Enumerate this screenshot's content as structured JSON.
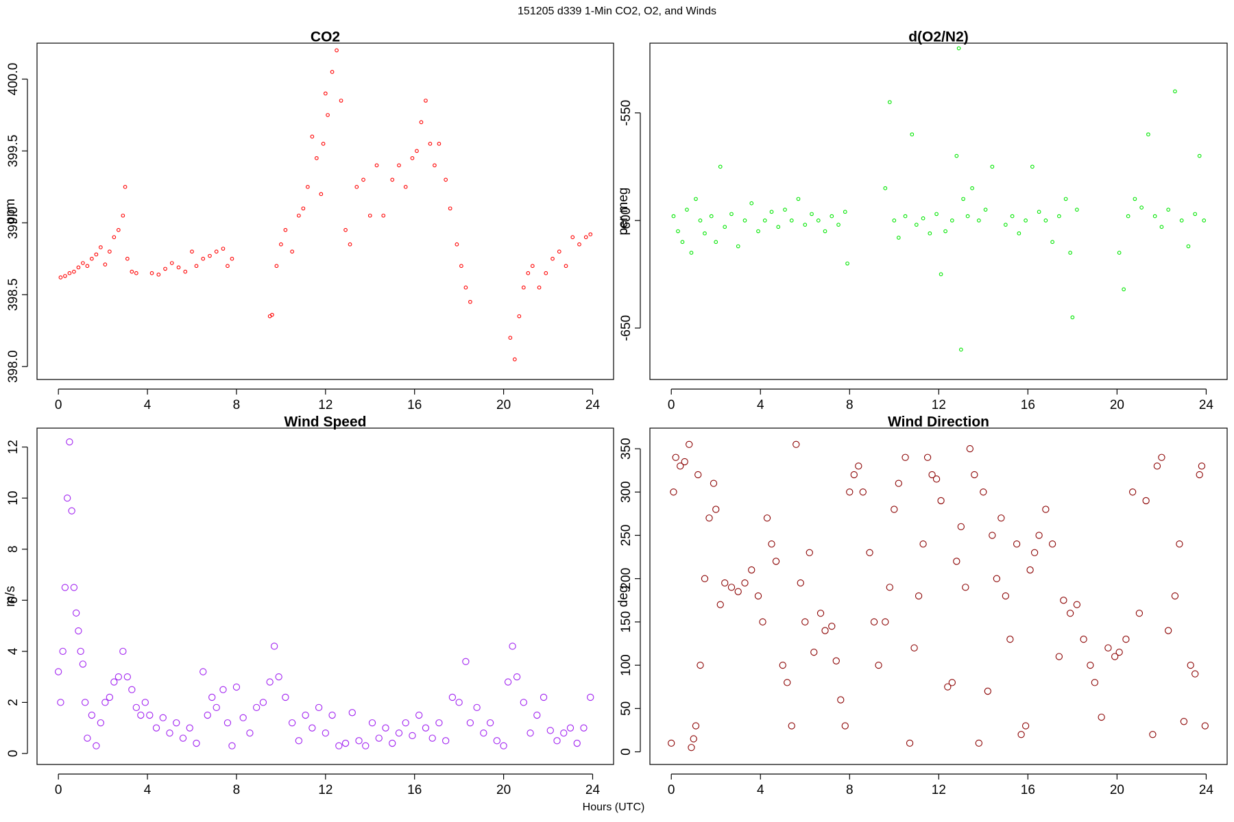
{
  "title": "151205   d339   1-Min CO2, O2, and Winds",
  "xlabel": "Hours (UTC)",
  "chart_data": [
    {
      "type": "scatter",
      "title": "CO2",
      "ylabel": "ppm",
      "color": "#ff0000",
      "xlim": [
        -0.96,
        24.94
      ],
      "xticks": [
        0,
        4,
        8,
        12,
        16,
        20,
        24
      ],
      "ylim": [
        397.91,
        400.25
      ],
      "yticks": [
        {
          "value": 398,
          "label": "398.0"
        },
        398.5,
        {
          "value": 399,
          "label": "399.0"
        },
        399.5,
        {
          "value": 400,
          "label": "400.0"
        }
      ],
      "x": [
        0.1,
        0.3,
        0.5,
        0.7,
        0.9,
        1.1,
        1.3,
        1.5,
        1.7,
        1.9,
        2.1,
        2.3,
        2.5,
        2.7,
        2.9,
        3.0,
        3.1,
        3.3,
        3.5,
        4.2,
        4.5,
        4.8,
        5.1,
        5.4,
        5.7,
        6.0,
        6.2,
        6.5,
        6.8,
        7.1,
        7.4,
        7.6,
        7.8,
        9.5,
        9.6,
        9.8,
        10.0,
        10.2,
        10.5,
        10.8,
        11.0,
        11.2,
        11.4,
        11.6,
        11.8,
        11.9,
        12.0,
        12.1,
        12.3,
        12.5,
        12.7,
        12.9,
        13.1,
        13.4,
        13.7,
        14.0,
        14.3,
        14.6,
        15.0,
        15.3,
        15.6,
        15.9,
        16.1,
        16.3,
        16.5,
        16.7,
        16.9,
        17.1,
        17.4,
        17.6,
        17.9,
        18.1,
        18.3,
        18.5,
        20.3,
        20.5,
        20.7,
        20.9,
        21.1,
        21.3,
        21.6,
        21.9,
        22.2,
        22.5,
        22.8,
        23.1,
        23.4,
        23.7,
        23.9
      ],
      "values": [
        398.62,
        398.63,
        398.65,
        398.66,
        398.69,
        398.72,
        398.7,
        398.75,
        398.78,
        398.83,
        398.71,
        398.8,
        398.9,
        398.95,
        399.05,
        399.25,
        398.75,
        398.66,
        398.65,
        398.65,
        398.64,
        398.68,
        398.72,
        398.69,
        398.66,
        398.8,
        398.7,
        398.75,
        398.77,
        398.8,
        398.82,
        398.7,
        398.75,
        398.35,
        398.36,
        398.7,
        398.85,
        398.95,
        398.8,
        399.05,
        399.1,
        399.25,
        399.6,
        399.45,
        399.2,
        399.55,
        399.9,
        399.75,
        400.05,
        400.2,
        399.85,
        398.95,
        398.85,
        399.25,
        399.3,
        399.05,
        399.4,
        399.05,
        399.3,
        399.4,
        399.25,
        399.45,
        399.5,
        399.7,
        399.85,
        399.55,
        399.4,
        399.55,
        399.3,
        399.1,
        398.85,
        398.7,
        398.55,
        398.45,
        398.2,
        398.05,
        398.35,
        398.55,
        398.65,
        398.7,
        398.55,
        398.65,
        398.75,
        398.8,
        398.7,
        398.9,
        398.85,
        398.9,
        398.92
      ]
    },
    {
      "type": "scatter",
      "title": "d(O2/N2)",
      "ylabel": "per meg",
      "color": "#00e600",
      "xlim": [
        -0.96,
        24.94
      ],
      "xticks": [
        0,
        4,
        8,
        12,
        16,
        20,
        24
      ],
      "ylim": [
        -673.9,
        -517.6
      ],
      "yticks": [
        -650,
        -600,
        -550
      ],
      "x": [
        0.1,
        0.3,
        0.5,
        0.7,
        0.9,
        1.1,
        1.3,
        1.5,
        1.8,
        2.0,
        2.2,
        2.4,
        2.7,
        3.0,
        3.3,
        3.6,
        3.9,
        4.2,
        4.5,
        4.8,
        5.1,
        5.4,
        5.7,
        6.0,
        6.3,
        6.6,
        6.9,
        7.2,
        7.5,
        7.8,
        7.9,
        9.6,
        9.8,
        10.0,
        10.2,
        10.5,
        10.8,
        11.0,
        11.3,
        11.6,
        11.9,
        12.1,
        12.3,
        12.6,
        12.8,
        12.9,
        13.0,
        13.1,
        13.3,
        13.5,
        13.8,
        14.1,
        14.4,
        15.0,
        15.3,
        15.6,
        15.9,
        16.2,
        16.5,
        16.8,
        17.1,
        17.4,
        17.7,
        17.9,
        18.0,
        18.2,
        20.1,
        20.3,
        20.5,
        20.8,
        21.1,
        21.4,
        21.7,
        22.0,
        22.3,
        22.6,
        22.9,
        23.2,
        23.5,
        23.7,
        23.9
      ],
      "values": [
        -598,
        -605,
        -610,
        -595,
        -615,
        -590,
        -600,
        -606,
        -598,
        -610,
        -575,
        -603,
        -597,
        -612,
        -600,
        -592,
        -605,
        -600,
        -596,
        -603,
        -595,
        -600,
        -590,
        -602,
        -597,
        -600,
        -605,
        -598,
        -602,
        -596,
        -620,
        -585,
        -545,
        -600,
        -608,
        -598,
        -560,
        -602,
        -599,
        -606,
        -597,
        -625,
        -605,
        -600,
        -570,
        -520,
        -660,
        -590,
        -598,
        -585,
        -600,
        -595,
        -575,
        -602,
        -598,
        -606,
        -600,
        -575,
        -596,
        -600,
        -610,
        -598,
        -590,
        -615,
        -645,
        -595,
        -615,
        -632,
        -598,
        -590,
        -594,
        -560,
        -598,
        -603,
        -595,
        -540,
        -600,
        -612,
        -597,
        -570,
        -600
      ]
    },
    {
      "type": "scatter",
      "title": "Wind Speed",
      "ylabel": "m/s",
      "color": "#a020f0",
      "xlim": [
        -0.96,
        24.94
      ],
      "xticks": [
        0,
        4,
        8,
        12,
        16,
        20,
        24
      ],
      "ylim": [
        -0.43,
        12.74
      ],
      "yticks": [
        0,
        2,
        4,
        6,
        8,
        10,
        12
      ],
      "x": [
        0.0,
        0.1,
        0.2,
        0.3,
        0.4,
        0.5,
        0.6,
        0.7,
        0.8,
        0.9,
        1.0,
        1.1,
        1.2,
        1.3,
        1.5,
        1.7,
        1.9,
        2.1,
        2.3,
        2.5,
        2.7,
        2.9,
        3.1,
        3.3,
        3.5,
        3.7,
        3.9,
        4.1,
        4.4,
        4.7,
        5.0,
        5.3,
        5.6,
        5.9,
        6.2,
        6.5,
        6.7,
        6.9,
        7.1,
        7.4,
        7.6,
        7.8,
        8.0,
        8.3,
        8.6,
        8.9,
        9.2,
        9.5,
        9.7,
        9.9,
        10.2,
        10.5,
        10.8,
        11.1,
        11.4,
        11.7,
        12.0,
        12.3,
        12.6,
        12.9,
        13.2,
        13.5,
        13.8,
        14.1,
        14.4,
        14.7,
        15.0,
        15.3,
        15.6,
        15.9,
        16.2,
        16.5,
        16.8,
        17.1,
        17.4,
        17.7,
        18.0,
        18.3,
        18.5,
        18.8,
        19.1,
        19.4,
        19.7,
        20.0,
        20.2,
        20.4,
        20.6,
        20.9,
        21.2,
        21.5,
        21.8,
        22.1,
        22.4,
        22.7,
        23.0,
        23.3,
        23.6,
        23.9
      ],
      "values": [
        3.2,
        2.0,
        4.0,
        6.5,
        10.0,
        12.2,
        9.5,
        6.5,
        5.5,
        4.8,
        4.0,
        3.5,
        2.0,
        0.6,
        1.5,
        0.3,
        1.2,
        2.0,
        2.2,
        2.8,
        3.0,
        4.0,
        3.0,
        2.5,
        1.8,
        1.5,
        2.0,
        1.5,
        1.0,
        1.4,
        0.8,
        1.2,
        0.6,
        1.0,
        0.4,
        3.2,
        1.5,
        2.2,
        1.8,
        2.5,
        1.2,
        0.3,
        2.6,
        1.4,
        0.8,
        1.8,
        2.0,
        2.8,
        4.2,
        3.0,
        2.2,
        1.2,
        0.5,
        1.5,
        1.0,
        1.8,
        0.8,
        1.5,
        0.3,
        0.4,
        1.6,
        0.5,
        0.3,
        1.2,
        0.6,
        1.0,
        0.4,
        0.8,
        1.2,
        0.7,
        1.5,
        1.0,
        0.6,
        1.2,
        0.5,
        2.2,
        2.0,
        3.6,
        1.2,
        1.8,
        0.8,
        1.2,
        0.5,
        0.3,
        2.8,
        4.2,
        3.0,
        2.0,
        0.8,
        1.5,
        2.2,
        0.9,
        0.5,
        0.8,
        1.0,
        0.4,
        1.0,
        2.2
      ]
    },
    {
      "type": "scatter",
      "title": "Wind Direction",
      "ylabel": "deg",
      "color": "#8b0000",
      "xlim": [
        -0.96,
        24.94
      ],
      "xticks": [
        0,
        4,
        8,
        12,
        16,
        20,
        24
      ],
      "ylim": [
        -14.6,
        373.8
      ],
      "yticks": [
        0,
        50,
        100,
        150,
        200,
        250,
        300,
        350
      ],
      "x": [
        0.0,
        0.1,
        0.2,
        0.4,
        0.6,
        0.8,
        0.9,
        1.0,
        1.1,
        1.2,
        1.3,
        1.5,
        1.7,
        1.9,
        2.0,
        2.2,
        2.4,
        2.7,
        3.0,
        3.3,
        3.6,
        3.9,
        4.1,
        4.3,
        4.5,
        4.7,
        5.0,
        5.2,
        5.4,
        5.6,
        5.8,
        6.0,
        6.2,
        6.4,
        6.7,
        6.9,
        7.2,
        7.4,
        7.6,
        7.8,
        8.0,
        8.2,
        8.4,
        8.6,
        8.9,
        9.1,
        9.3,
        9.6,
        9.8,
        10.0,
        10.2,
        10.5,
        10.7,
        10.9,
        11.1,
        11.3,
        11.5,
        11.7,
        11.9,
        12.1,
        12.4,
        12.6,
        12.8,
        13.0,
        13.2,
        13.4,
        13.6,
        13.8,
        14.0,
        14.2,
        14.4,
        14.6,
        14.8,
        15.0,
        15.2,
        15.5,
        15.7,
        15.9,
        16.1,
        16.3,
        16.5,
        16.8,
        17.1,
        17.4,
        17.6,
        17.9,
        18.2,
        18.5,
        18.8,
        19.0,
        19.3,
        19.6,
        19.9,
        20.1,
        20.4,
        20.7,
        21.0,
        21.3,
        21.6,
        21.8,
        22.0,
        22.3,
        22.6,
        22.8,
        23.0,
        23.3,
        23.5,
        23.7,
        23.8,
        23.95
      ],
      "values": [
        10,
        300,
        340,
        330,
        335,
        355,
        5,
        15,
        30,
        320,
        100,
        200,
        270,
        310,
        280,
        170,
        195,
        190,
        185,
        195,
        210,
        180,
        150,
        270,
        240,
        220,
        100,
        80,
        30,
        355,
        195,
        150,
        230,
        115,
        160,
        140,
        145,
        105,
        60,
        30,
        300,
        320,
        330,
        300,
        230,
        150,
        100,
        150,
        190,
        280,
        310,
        340,
        10,
        120,
        180,
        240,
        340,
        320,
        315,
        290,
        75,
        80,
        220,
        260,
        190,
        350,
        320,
        10,
        300,
        70,
        250,
        200,
        270,
        180,
        130,
        240,
        20,
        30,
        210,
        230,
        250,
        280,
        240,
        110,
        175,
        160,
        170,
        130,
        100,
        80,
        40,
        120,
        110,
        115,
        130,
        300,
        160,
        290,
        20,
        330,
        340,
        140,
        180,
        240,
        35,
        100,
        90,
        320,
        330,
        30
      ]
    }
  ]
}
